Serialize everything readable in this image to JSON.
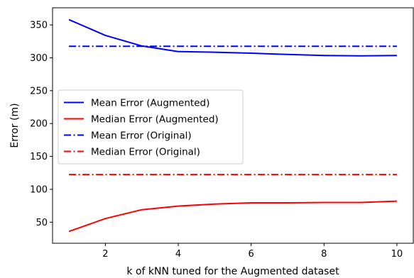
{
  "chart_data": {
    "type": "line",
    "title": "",
    "xlabel": "k of kNN tuned for the Augmented dataset",
    "ylabel": "Error (m)",
    "xlim": [
      0.55,
      10.45
    ],
    "ylim": [
      18,
      376
    ],
    "x_ticks": [
      2,
      4,
      6,
      8,
      10
    ],
    "y_ticks": [
      50,
      100,
      150,
      200,
      250,
      300,
      350
    ],
    "grid": false,
    "legend_position": "center-left",
    "x": [
      1,
      2,
      3,
      4,
      5,
      6,
      7,
      8,
      9,
      10
    ],
    "series": [
      {
        "name": "Mean Error (Augmented)",
        "color": "#0000ff",
        "style": "solid",
        "values": [
          358,
          334,
          318,
          309.5,
          308.5,
          307,
          305,
          303.5,
          303,
          303.5
        ]
      },
      {
        "name": "Median Error (Augmented)",
        "color": "#ff0000",
        "style": "solid",
        "values": [
          36,
          55.5,
          69,
          74.5,
          77.5,
          79.5,
          79.5,
          80,
          80,
          82
        ]
      },
      {
        "name": "Mean Error (Original)",
        "color": "#0000ff",
        "style": "dashdot",
        "values": [
          317.5,
          317.5,
          317.5,
          317.5,
          317.5,
          317.5,
          317.5,
          317.5,
          317.5,
          317.5
        ]
      },
      {
        "name": "Median Error (Original)",
        "color": "#ff0000",
        "style": "dashdot",
        "values": [
          122.5,
          122.5,
          122.5,
          122.5,
          122.5,
          122.5,
          122.5,
          122.5,
          122.5,
          122.5
        ]
      }
    ]
  }
}
